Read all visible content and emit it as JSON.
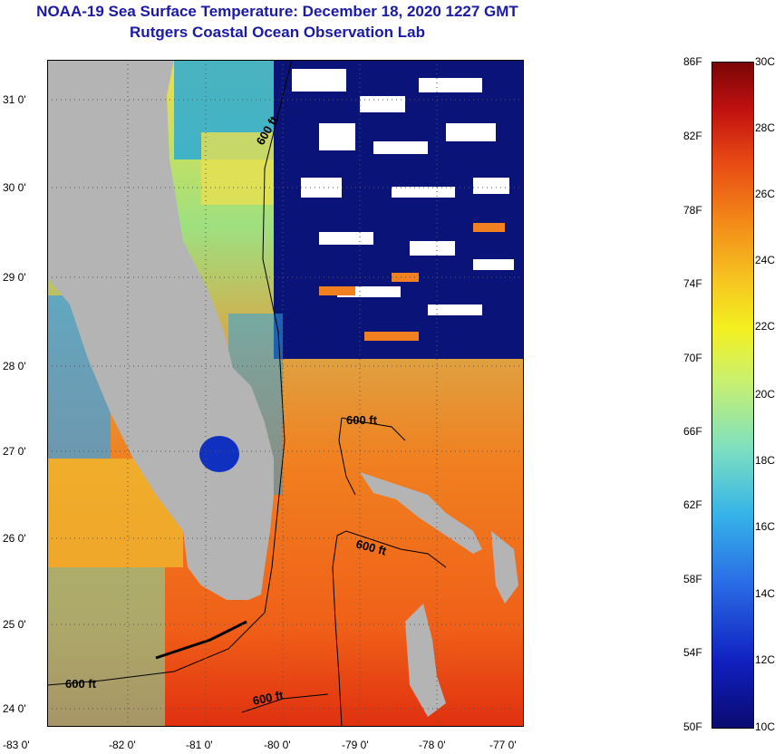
{
  "title": "NOAA-19 Sea Surface Temperature:  December 18, 2020 1227 GMT",
  "subtitle": "Rutgers Coastal Ocean Observation Lab",
  "map": {
    "lat_labels": [
      "31 0'",
      "30 0'",
      "29 0'",
      "28 0'",
      "27 0'",
      "26 0'",
      "25 0'",
      "24 0'"
    ],
    "lon_labels": [
      "-83 0'",
      "-82 0'",
      "-81 0'",
      "-80 0'",
      "-79 0'",
      "-78 0'",
      "-77 0'"
    ],
    "contour_labels": [
      "600 ft",
      "600 ft",
      "600 ft",
      "600 ft",
      "600 ft"
    ],
    "colors": {
      "land": "#b4b4b4",
      "cloud": "#ffffff",
      "cold": "#0a1478",
      "warm": "#f07820"
    }
  },
  "colorbar": {
    "fahrenheit": [
      "86F",
      "82F",
      "78F",
      "74F",
      "70F",
      "66F",
      "62F",
      "58F",
      "54F",
      "50F"
    ],
    "celsius": [
      "30C",
      "28C",
      "26C",
      "24C",
      "22C",
      "20C",
      "18C",
      "16C",
      "14C",
      "12C",
      "10C"
    ]
  }
}
